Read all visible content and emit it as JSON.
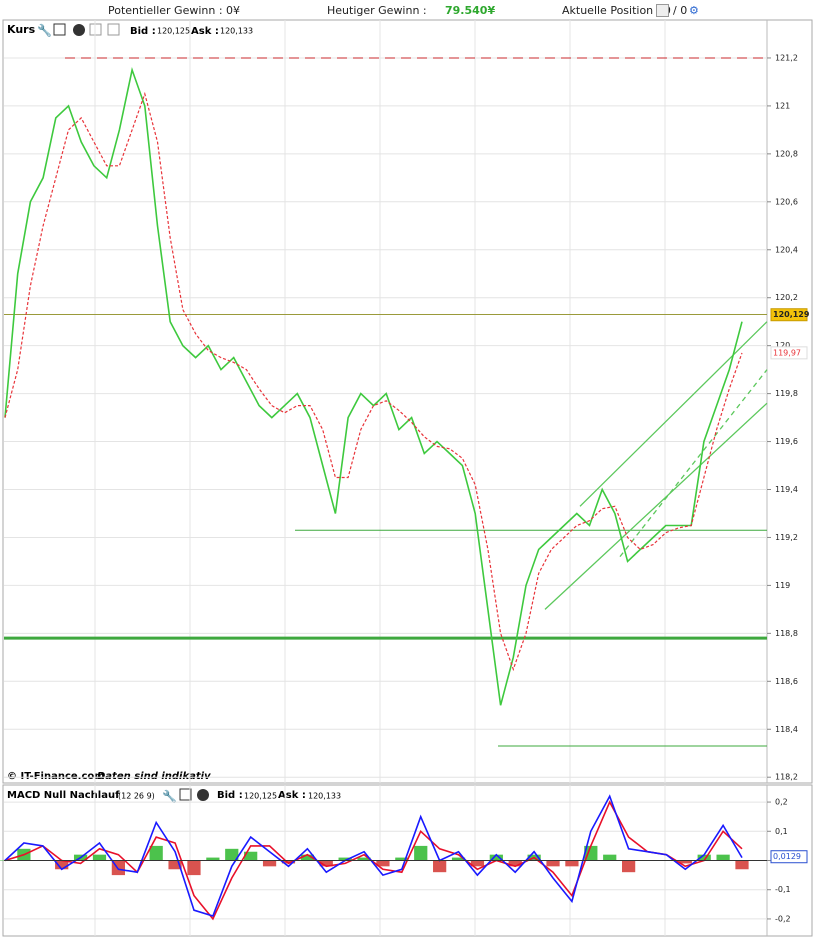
{
  "header": {
    "potential_gain": "Potentieller Gewinn : 0¥",
    "today_gain_label": "Heutiger Gewinn :",
    "today_gain": "79.540¥",
    "position": "Aktuelle Position : 0",
    "position_total": "/ 0"
  },
  "chart_data": [
    {
      "type": "line",
      "title": "Kurs",
      "bid_label": "Bid :",
      "bid": "120,125",
      "ask_label": "Ask :",
      "ask": "120,133",
      "source": "© IT-Finance.com",
      "note": "Daten sind indikativ",
      "ylim": [
        118.18,
        121.35
      ],
      "yticks": [
        {
          "value": 118.2,
          "label": "118,2"
        },
        {
          "value": 118.4,
          "label": "118,4"
        },
        {
          "value": 118.6,
          "label": "118,6"
        },
        {
          "value": 118.8,
          "label": "118,8"
        },
        119,
        {
          "value": 119.2,
          "label": "119,2"
        },
        {
          "value": 119.4,
          "label": "119,4"
        },
        {
          "value": 119.6,
          "label": "119,6"
        },
        {
          "value": 119.8,
          "label": "119,8"
        },
        120,
        {
          "value": 120.2,
          "label": "120,2"
        },
        {
          "value": 120.4,
          "label": "120,4"
        },
        {
          "value": 120.6,
          "label": "120,6"
        },
        {
          "value": 120.8,
          "label": "120,8"
        },
        121,
        {
          "value": 121.2,
          "label": "121,2"
        }
      ],
      "grid": true,
      "series": [
        {
          "color": "#3ec93e",
          "dashed": false,
          "values": [
            119.7,
            120.3,
            120.6,
            120.7,
            120.95,
            121.0,
            120.85,
            120.75,
            120.7,
            120.9,
            121.15,
            121.0,
            120.5,
            120.1,
            120.0,
            119.95,
            120.0,
            119.9,
            119.95,
            119.85,
            119.75,
            119.7,
            119.75,
            119.8,
            119.7,
            119.5,
            119.3,
            119.7,
            119.8,
            119.75,
            119.8,
            119.65,
            119.7,
            119.55,
            119.6,
            119.55,
            119.5,
            119.3,
            118.9,
            118.5,
            118.7,
            119.0,
            119.15,
            119.2,
            119.25,
            119.3,
            119.25,
            119.4,
            119.3,
            119.1,
            119.15,
            119.2,
            119.25,
            119.25,
            119.25,
            119.6,
            119.75,
            119.9,
            120.1
          ]
        },
        {
          "color": "#e8343a",
          "dashed": true,
          "values": [
            119.7,
            119.9,
            120.25,
            120.5,
            120.7,
            120.9,
            120.95,
            120.85,
            120.75,
            120.75,
            120.9,
            121.05,
            120.85,
            120.45,
            120.15,
            120.05,
            119.98,
            119.95,
            119.93,
            119.9,
            119.82,
            119.75,
            119.72,
            119.75,
            119.75,
            119.65,
            119.45,
            119.45,
            119.65,
            119.75,
            119.77,
            119.73,
            119.68,
            119.62,
            119.58,
            119.57,
            119.53,
            119.42,
            119.15,
            118.8,
            118.65,
            118.8,
            119.05,
            119.15,
            119.2,
            119.25,
            119.27,
            119.32,
            119.33,
            119.2,
            119.15,
            119.17,
            119.22,
            119.24,
            119.25,
            119.45,
            119.65,
            119.82,
            119.97
          ]
        }
      ],
      "levels": [
        {
          "value": 121.2,
          "color": "#c8282c",
          "dashed": true,
          "width": 1
        },
        {
          "value": 120.13,
          "color": "#9a9a3a",
          "dashed": false,
          "width": 1
        },
        {
          "value": 119.23,
          "color": "#3ea83e",
          "dashed": false,
          "width": 1
        },
        {
          "value": 118.78,
          "color": "#3ea83e",
          "dashed": false,
          "width": 3
        },
        {
          "value": 118.33,
          "color": "#3ea83e",
          "dashed": false,
          "width": 1
        }
      ],
      "trend_lines": [
        {
          "values": [
            119.33,
            120.1
          ],
          "color": "#5cc85c",
          "dashed": false
        },
        {
          "values": [
            119.12,
            119.9
          ],
          "color": "#5cc85c",
          "dashed": true
        },
        {
          "values": [
            118.9,
            119.76
          ],
          "color": "#5cc85c",
          "dashed": false
        }
      ],
      "last_label": {
        "value": 120.129,
        "label": "120,129"
      },
      "ma_label": {
        "value": 119.97,
        "label": "119,97"
      }
    },
    {
      "type": "line",
      "title": "MACD Null Nachlauf",
      "params": "(12 26 9)",
      "bid_label": "Bid :",
      "bid": "120,125",
      "ask_label": "Ask :",
      "ask": "120,133",
      "ylim": [
        -0.255,
        0.255
      ],
      "yticks": [
        {
          "value": -0.2,
          "label": "-0,2"
        },
        {
          "value": -0.1,
          "label": "-0,1"
        },
        0,
        {
          "value": 0.1,
          "label": "0,1"
        },
        {
          "value": 0.2,
          "label": "0,2"
        }
      ],
      "grid": true,
      "series": [
        {
          "type": "bar",
          "color": "#4cc24c",
          "negative_color": "#d9534f",
          "values": [
            0,
            0.04,
            0,
            -0.03,
            0.02,
            0.02,
            -0.05,
            0,
            0.05,
            -0.03,
            -0.05,
            0.01,
            0.04,
            0.03,
            -0.02,
            -0.01,
            0.02,
            -0.02,
            0.01,
            0.01,
            -0.02,
            0.01,
            0.05,
            -0.04,
            0.01,
            -0.02,
            0.02,
            -0.02,
            0.02,
            -0.02,
            -0.02,
            0.05,
            0.02,
            -0.04,
            0,
            0,
            -0.01,
            0.02,
            0.02,
            -0.03
          ]
        },
        {
          "color": "#e8102a",
          "dashed": false,
          "values": [
            0.0,
            0.02,
            0.05,
            0.0,
            -0.01,
            0.04,
            0.02,
            -0.04,
            0.08,
            0.06,
            -0.12,
            -0.2,
            -0.06,
            0.05,
            0.05,
            -0.01,
            0.02,
            -0.02,
            -0.01,
            0.02,
            -0.03,
            -0.04,
            0.1,
            0.04,
            0.02,
            -0.03,
            0.0,
            -0.02,
            0.01,
            -0.04,
            -0.12,
            0.05,
            0.2,
            0.08,
            0.03,
            0.02,
            -0.02,
            0.0,
            0.1,
            0.04
          ]
        },
        {
          "color": "#1a1aff",
          "dashed": false,
          "values": [
            0.0,
            0.06,
            0.05,
            -0.03,
            0.01,
            0.06,
            -0.03,
            -0.04,
            0.13,
            0.03,
            -0.17,
            -0.19,
            -0.02,
            0.08,
            0.03,
            -0.02,
            0.04,
            -0.04,
            0.0,
            0.03,
            -0.05,
            -0.03,
            0.15,
            0.0,
            0.03,
            -0.05,
            0.02,
            -0.04,
            0.03,
            -0.06,
            -0.14,
            0.1,
            0.22,
            0.04,
            0.03,
            0.02,
            -0.03,
            0.02,
            0.12,
            0.01
          ]
        }
      ],
      "last_label": {
        "value": 0.0129,
        "label": "0,0129"
      }
    }
  ]
}
